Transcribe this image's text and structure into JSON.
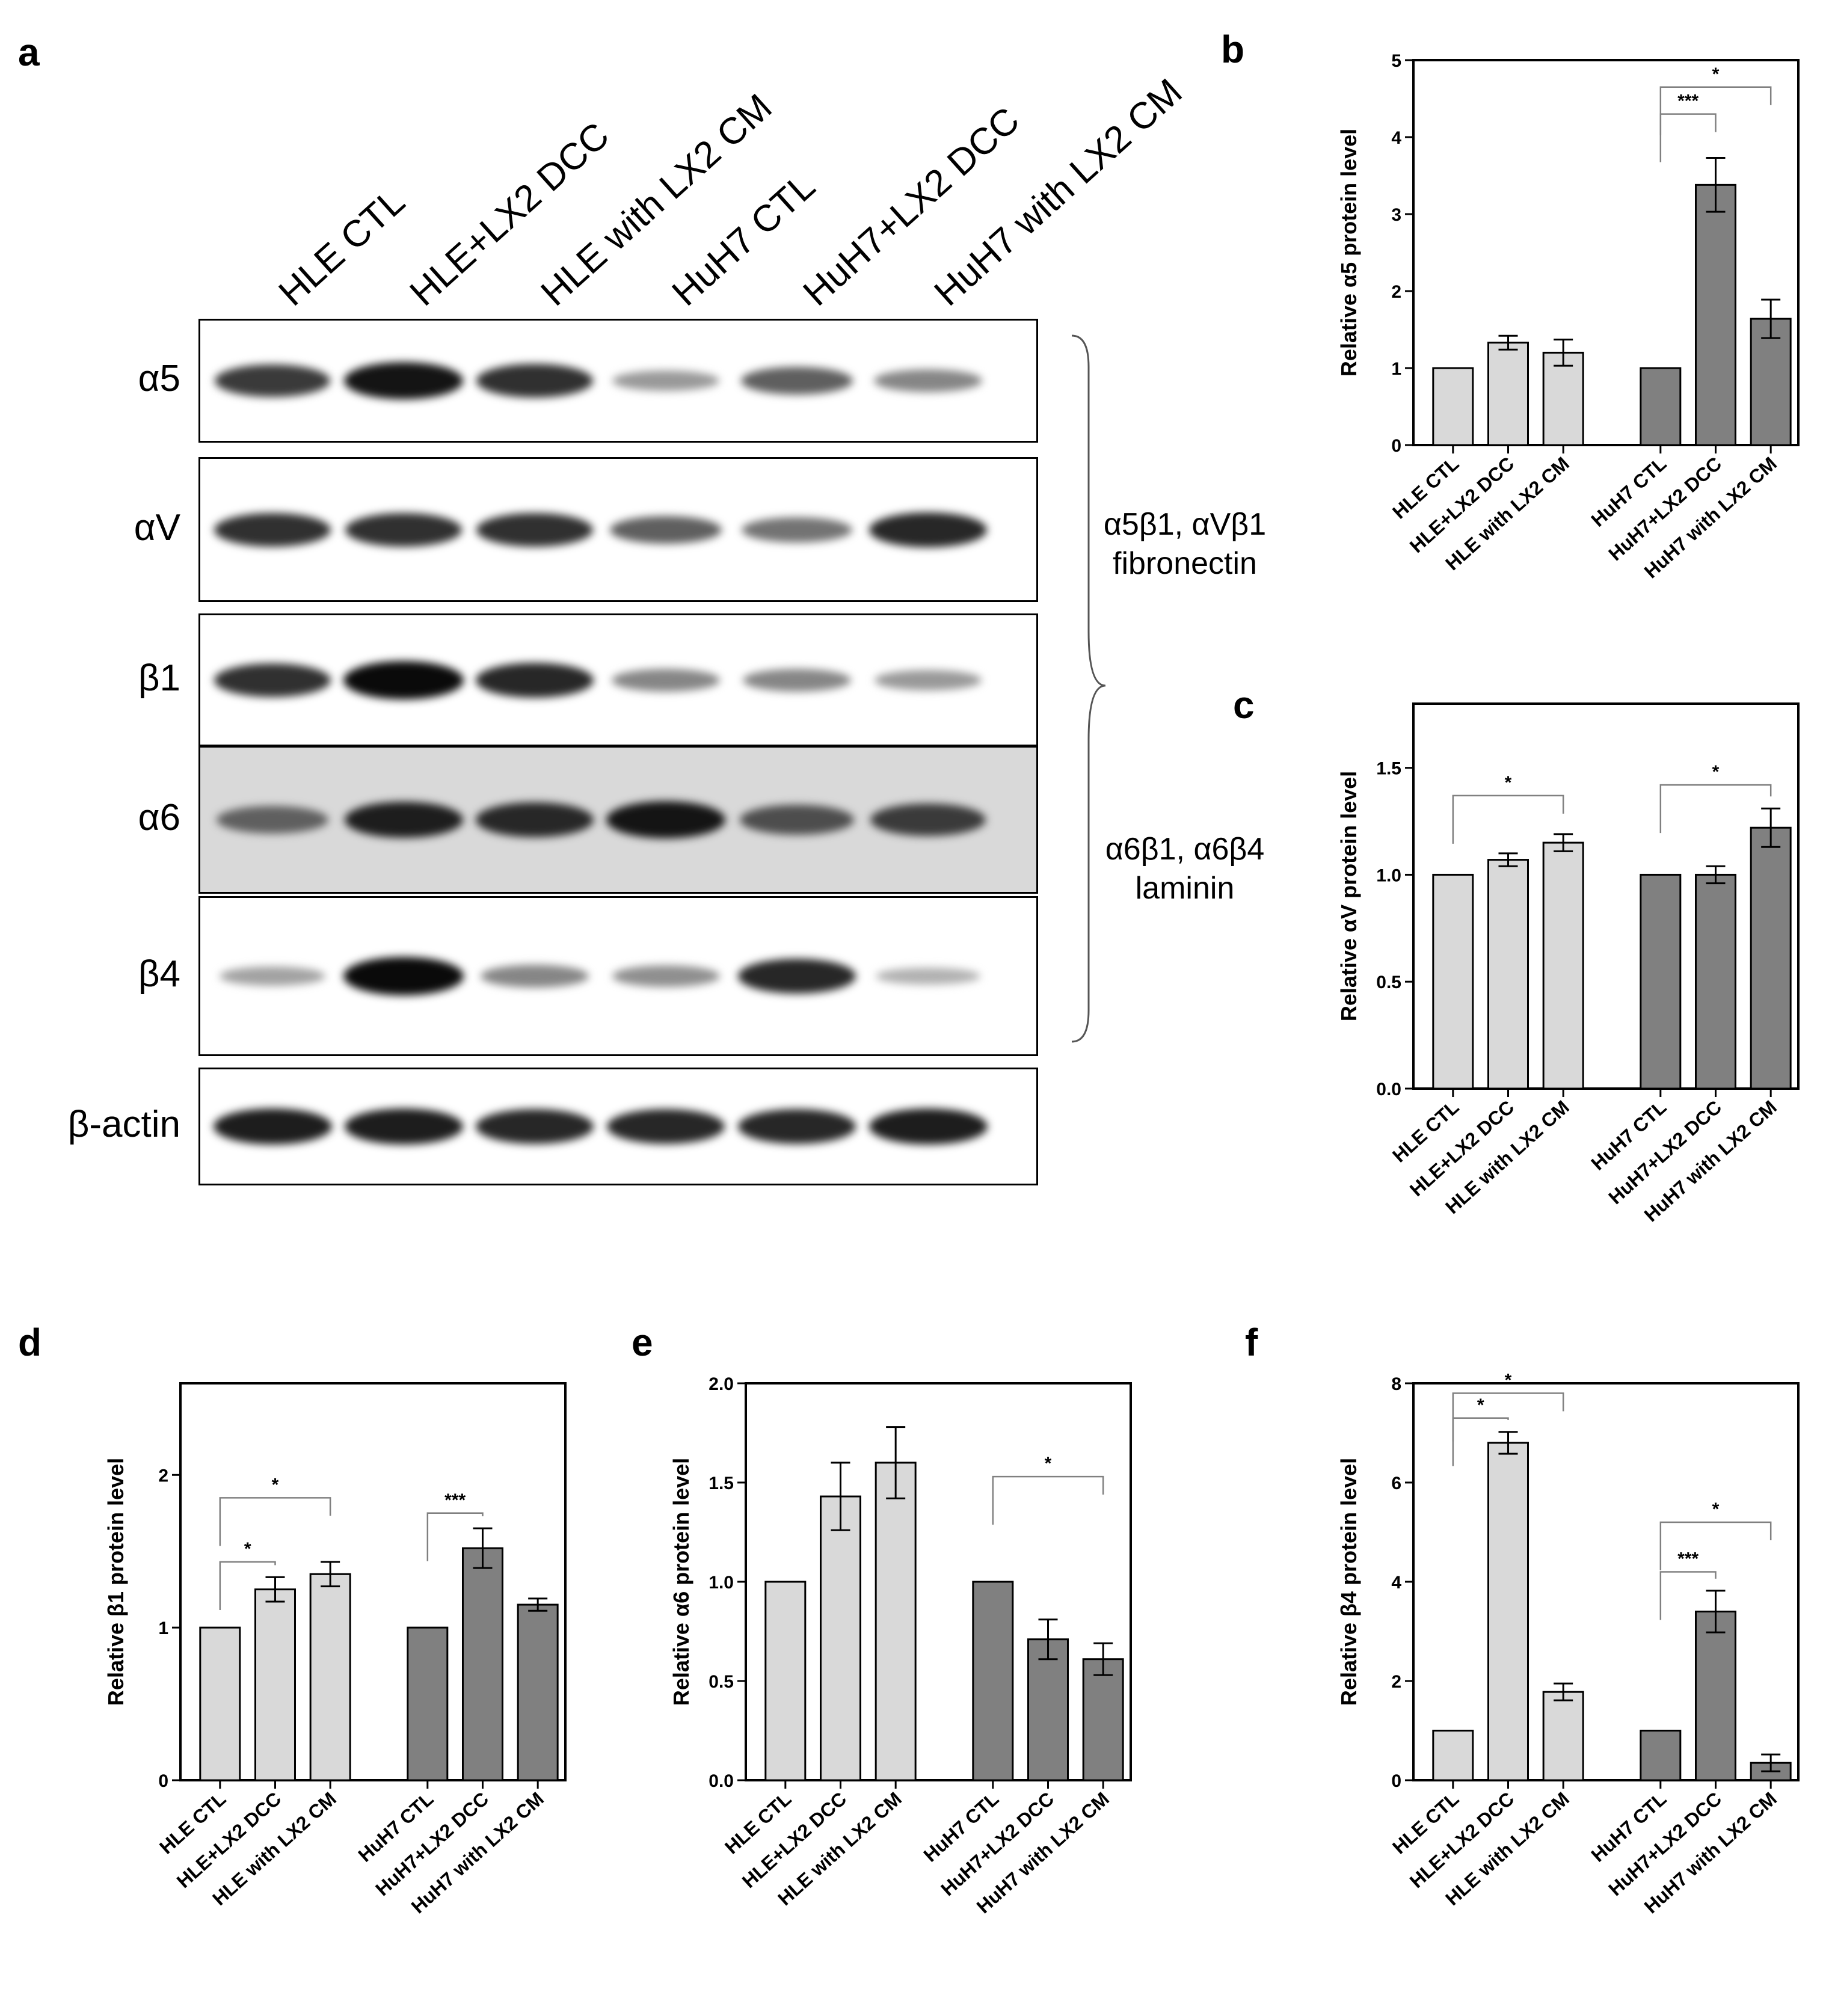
{
  "panel_letters": {
    "a": "a",
    "b": "b",
    "c": "c",
    "d": "d",
    "e": "e",
    "f": "f"
  },
  "blot": {
    "lanes": [
      "HLE CTL",
      "HLE+LX2 DCC",
      "HLE with LX2 CM",
      "HuH7 CTL",
      "HuH7+LX2 DCC",
      "HuH7 with LX2 CM"
    ],
    "rows": [
      {
        "label": "α5",
        "intensity": [
          0.75,
          0.95,
          0.8,
          0.25,
          0.55,
          0.35
        ]
      },
      {
        "label": "αV",
        "intensity": [
          0.8,
          0.8,
          0.8,
          0.55,
          0.45,
          0.85
        ]
      },
      {
        "label": "β1",
        "intensity": [
          0.8,
          1.0,
          0.85,
          0.35,
          0.35,
          0.25
        ]
      },
      {
        "label": "α6",
        "intensity": [
          0.55,
          0.9,
          0.85,
          0.95,
          0.65,
          0.75
        ]
      },
      {
        "label": "β4",
        "intensity": [
          0.2,
          1.0,
          0.35,
          0.3,
          0.85,
          0.12
        ]
      },
      {
        "label": "β-actin",
        "intensity": [
          0.9,
          0.9,
          0.85,
          0.85,
          0.85,
          0.9
        ]
      }
    ],
    "group1_label": [
      "α5β1, αVβ1",
      "fibronectin"
    ],
    "group2_label": [
      "α6β1, α6β4",
      "laminin"
    ]
  },
  "colors": {
    "hle_bar": "#d9d9d9",
    "huh7_bar": "#808080",
    "axis": "#000000",
    "bracket": "#808080"
  },
  "chart_data": [
    {
      "panel": "b",
      "type": "bar",
      "categories": [
        "HLE CTL",
        "HLE+LX2 DCC",
        "HLE with LX2 CM",
        "HuH7 CTL",
        "HuH7+LX2 DCC",
        "HuH7 with LX2 CM"
      ],
      "values": [
        1.0,
        1.33,
        1.2,
        1.0,
        3.38,
        1.64
      ],
      "errors": [
        0,
        0.09,
        0.17,
        0,
        0.35,
        0.25
      ],
      "ylabel": "Relative α5 protein level",
      "ylim": [
        0,
        5
      ],
      "yticks": [
        "0",
        "1",
        "2",
        "3",
        "4",
        "5"
      ],
      "brackets": [
        {
          "from": 3,
          "to": 4,
          "label": "***",
          "level": 4.3
        },
        {
          "from": 3,
          "to": 5,
          "label": "*",
          "level": 4.65
        }
      ]
    },
    {
      "panel": "c",
      "type": "bar",
      "categories": [
        "HLE CTL",
        "HLE+LX2 DCC",
        "HLE with LX2 CM",
        "HuH7 CTL",
        "HuH7+LX2 DCC",
        "HuH7 with LX2 CM"
      ],
      "values": [
        1.0,
        1.07,
        1.15,
        1.0,
        1.0,
        1.22
      ],
      "errors": [
        0,
        0.03,
        0.04,
        0,
        0.04,
        0.09
      ],
      "ylabel": "Relative αV protein level",
      "ylim": [
        0,
        1.8
      ],
      "yticks": [
        "0.0",
        "0.5",
        "1.0",
        "1.5"
      ],
      "brackets": [
        {
          "from": 0,
          "to": 2,
          "label": "*",
          "level": 1.37
        },
        {
          "from": 3,
          "to": 5,
          "label": "*",
          "level": 1.42
        }
      ]
    },
    {
      "panel": "d",
      "type": "bar",
      "categories": [
        "HLE CTL",
        "HLE+LX2 DCC",
        "HLE with LX2 CM",
        "HuH7 CTL",
        "HuH7+LX2 DCC",
        "HuH7 with LX2 CM"
      ],
      "values": [
        1.0,
        1.25,
        1.35,
        1.0,
        1.52,
        1.15
      ],
      "errors": [
        0,
        0.08,
        0.08,
        0,
        0.13,
        0.04
      ],
      "ylabel": "Relative β1 protein level",
      "ylim": [
        0,
        2.6
      ],
      "yticks": [
        "0",
        "1",
        "2"
      ],
      "brackets": [
        {
          "from": 0,
          "to": 1,
          "label": "*",
          "level": 1.43
        },
        {
          "from": 0,
          "to": 2,
          "label": "*",
          "level": 1.85
        },
        {
          "from": 3,
          "to": 4,
          "label": "***",
          "level": 1.75
        }
      ]
    },
    {
      "panel": "e",
      "type": "bar",
      "categories": [
        "HLE CTL",
        "HLE+LX2 DCC",
        "HLE with LX2 CM",
        "HuH7 CTL",
        "HuH7+LX2 DCC",
        "HuH7 with LX2 CM"
      ],
      "values": [
        1.0,
        1.43,
        1.6,
        1.0,
        0.71,
        0.61
      ],
      "errors": [
        0,
        0.17,
        0.18,
        0,
        0.1,
        0.08
      ],
      "ylabel": "Relative α6 protein level",
      "ylim": [
        0,
        2.0
      ],
      "yticks": [
        "0.0",
        "0.5",
        "1.0",
        "1.5",
        "2.0"
      ],
      "brackets": [
        {
          "from": 3,
          "to": 5,
          "label": "*",
          "level": 1.53
        }
      ]
    },
    {
      "panel": "f",
      "type": "bar",
      "categories": [
        "HLE CTL",
        "HLE+LX2 DCC",
        "HLE with LX2 CM",
        "HuH7 CTL",
        "HuH7+LX2 DCC",
        "HuH7 with LX2 CM"
      ],
      "values": [
        1.0,
        6.8,
        1.78,
        1.0,
        3.4,
        0.35
      ],
      "errors": [
        0,
        0.22,
        0.17,
        0,
        0.42,
        0.17
      ],
      "ylabel": "Relative β4 protein level",
      "ylim": [
        0,
        8
      ],
      "yticks": [
        "0",
        "2",
        "4",
        "6",
        "8"
      ],
      "brackets": [
        {
          "from": 0,
          "to": 1,
          "label": "*",
          "level": 7.3
        },
        {
          "from": 0,
          "to": 2,
          "label": "*",
          "level": 7.8
        },
        {
          "from": 3,
          "to": 4,
          "label": "***",
          "level": 4.2
        },
        {
          "from": 3,
          "to": 5,
          "label": "*",
          "level": 5.2
        }
      ]
    }
  ]
}
